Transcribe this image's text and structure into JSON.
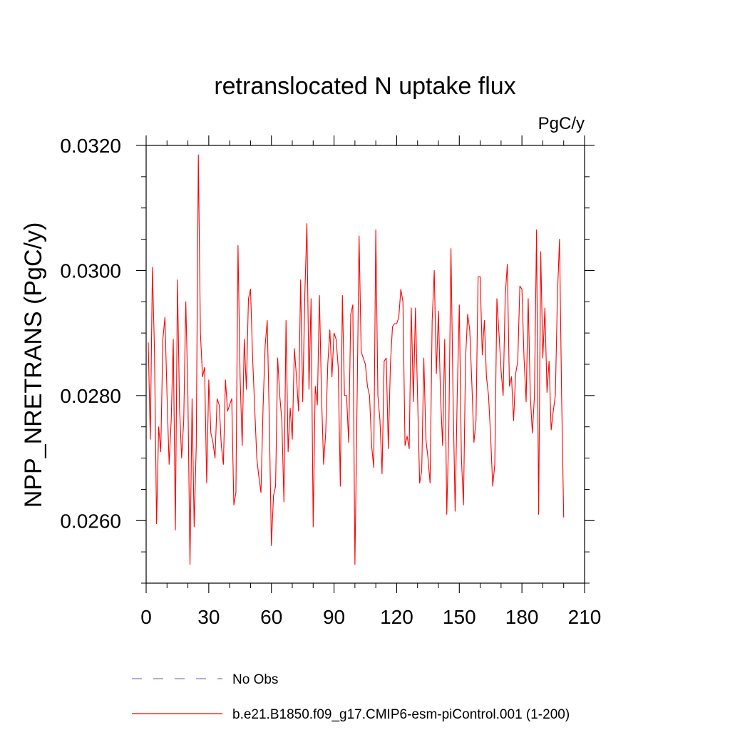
{
  "chart_data": {
    "type": "line",
    "title": "retranslocated N uptake flux",
    "units": "PgC/y",
    "ylabel": "NPP_NRETRANS  (PgC/y)",
    "xlabel": "",
    "xlim": [
      0,
      210
    ],
    "ylim": [
      0.025,
      0.032
    ],
    "xticks": [
      0,
      30,
      60,
      90,
      120,
      150,
      180,
      210
    ],
    "yticks": [
      0.026,
      0.028,
      0.03,
      0.032
    ],
    "ytick_labels": [
      "0.0260",
      "0.0280",
      "0.0300",
      "0.0320"
    ],
    "grid": false,
    "legend": {
      "position": "bottom"
    },
    "series": [
      {
        "name": "No Obs",
        "color": "#7f7fd0",
        "style": "dashed",
        "values": []
      },
      {
        "name": "b.e21.B1850.f09_g17.CMIP6-esm-piControl.001 (1-200)",
        "color": "#ff0000",
        "style": "solid",
        "x_start": 1,
        "values": [
          0.02885,
          0.0273,
          0.03005,
          0.0287,
          0.02595,
          0.0275,
          0.0271,
          0.0289,
          0.02925,
          0.028,
          0.0269,
          0.0276,
          0.0289,
          0.02585,
          0.02985,
          0.0278,
          0.027,
          0.0276,
          0.0295,
          0.028,
          0.0253,
          0.02795,
          0.0259,
          0.0272,
          0.03185,
          0.029,
          0.0283,
          0.02845,
          0.0266,
          0.02825,
          0.0274,
          0.02725,
          0.027,
          0.02795,
          0.02785,
          0.0272,
          0.0269,
          0.02825,
          0.02775,
          0.02785,
          0.02795,
          0.02625,
          0.02645,
          0.0304,
          0.0283,
          0.0272,
          0.0289,
          0.0281,
          0.02955,
          0.0297,
          0.0286,
          0.0278,
          0.027,
          0.0267,
          0.02645,
          0.0278,
          0.0288,
          0.0292,
          0.0276,
          0.0256,
          0.0264,
          0.02655,
          0.0286,
          0.028,
          0.0276,
          0.0263,
          0.0292,
          0.0271,
          0.0278,
          0.0273,
          0.02875,
          0.0283,
          0.02775,
          0.02985,
          0.0279,
          0.0296,
          0.03075,
          0.0281,
          0.02955,
          0.0259,
          0.02815,
          0.02785,
          0.0296,
          0.028,
          0.0269,
          0.0274,
          0.0285,
          0.02905,
          0.0283,
          0.029,
          0.0289,
          0.02845,
          0.02655,
          0.0296,
          0.028,
          0.028,
          0.02725,
          0.0293,
          0.02945,
          0.0253,
          0.0278,
          0.03055,
          0.0287,
          0.0286,
          0.0285,
          0.02815,
          0.028,
          0.0272,
          0.02685,
          0.03065,
          0.028,
          0.0276,
          0.02675,
          0.02855,
          0.0286,
          0.02715,
          0.0285,
          0.0291,
          0.02915,
          0.02915,
          0.02925,
          0.0297,
          0.0295,
          0.0272,
          0.02735,
          0.02715,
          0.0294,
          0.0279,
          0.0294,
          0.028,
          0.0266,
          0.0268,
          0.0286,
          0.0273,
          0.027,
          0.0266,
          0.0292,
          0.03,
          0.02835,
          0.02935,
          0.028,
          0.0272,
          0.0289,
          0.0261,
          0.0275,
          0.03035,
          0.028,
          0.02615,
          0.028,
          0.02945,
          0.027,
          0.02625,
          0.0286,
          0.0293,
          0.02905,
          0.0282,
          0.02725,
          0.0276,
          0.0299,
          0.0299,
          0.02865,
          0.0292,
          0.0283,
          0.028,
          0.02735,
          0.02655,
          0.0269,
          0.02955,
          0.029,
          0.0284,
          0.028,
          0.0296,
          0.0301,
          0.02815,
          0.0283,
          0.0276,
          0.02835,
          0.02855,
          0.02975,
          0.0297,
          0.0286,
          0.0279,
          0.02955,
          0.028,
          0.0274,
          0.028,
          0.03065,
          0.0261,
          0.0303,
          0.0286,
          0.0294,
          0.02805,
          0.02855,
          0.02745,
          0.02775,
          0.028,
          0.0296,
          0.0305,
          0.028,
          0.02605
        ]
      }
    ]
  }
}
